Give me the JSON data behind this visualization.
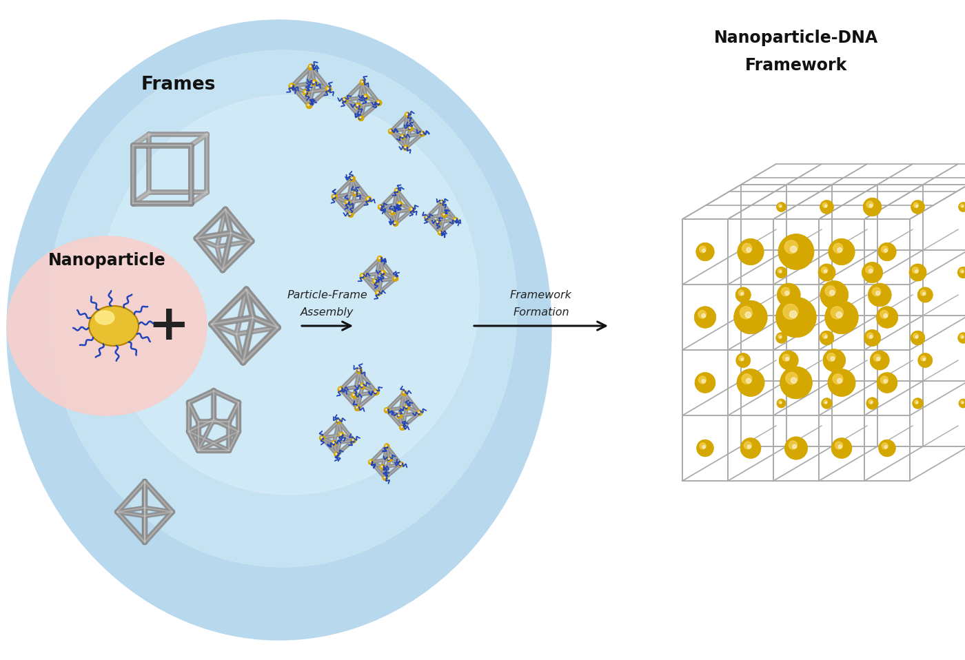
{
  "background_color": "#ffffff",
  "ellipse_outer_color": "#b8d8ee",
  "ellipse_inner_color": "#daeef8",
  "nanoparticle_glow_color": "#f8d0cc",
  "nanoparticle_color": "#e8c030",
  "nanoparticle_highlight": "#fff090",
  "dna_strand_color": "#2244bb",
  "frame_color": "#909090",
  "frame_highlight": "#cccccc",
  "frame_shadow": "#666666",
  "gold_ball_color": "#d4a800",
  "gold_ball_light": "#f5d050",
  "gold_ball_dark": "#a07000",
  "framework_grid_color": "#aaaaaa",
  "labels": {
    "frames": "Frames",
    "nanoparticle": "Nanoparticle",
    "particle_frame_line1": "Particle-Frame",
    "particle_frame_line2": "Assembly",
    "framework_formation_line1": "Framework",
    "framework_formation_line2": "Formation",
    "npdna_line1": "Nanoparticle-DNA",
    "npdna_line2": "Framework"
  }
}
